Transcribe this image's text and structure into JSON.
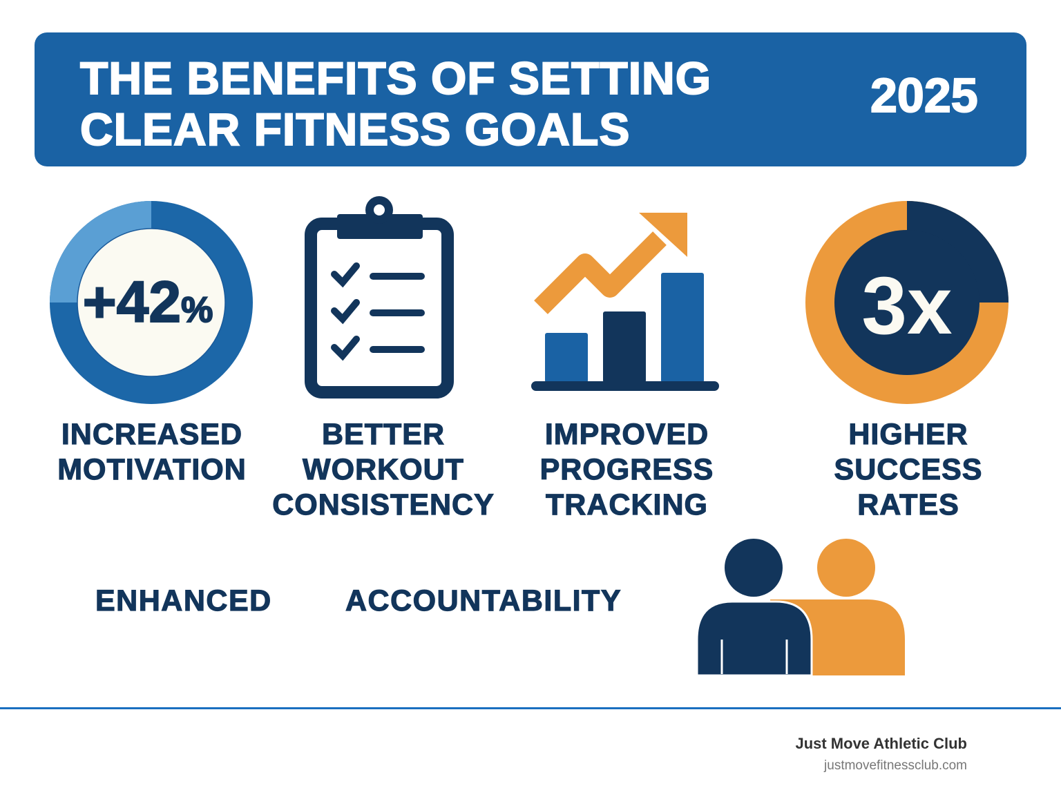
{
  "header": {
    "title_line1": "THE BENEFITS OF SETTING",
    "title_line2": "CLEAR FITNESS GOALS",
    "year": "2025"
  },
  "benefits": [
    {
      "icon": "donut-percent-icon",
      "stat": "+42",
      "stat_suffix": "%",
      "label_lines": [
        "INCREASED",
        "MOTIVATION"
      ]
    },
    {
      "icon": "clipboard-checklist-icon",
      "label_lines": [
        "BETTER",
        "WORKOUT",
        "CONSISTENCY"
      ]
    },
    {
      "icon": "growth-chart-icon",
      "label_lines": [
        "IMPROVED",
        "PROGRESS",
        "TRACKING"
      ]
    },
    {
      "icon": "donut-multiplier-icon",
      "stat": "3x",
      "label_lines": [
        "HIGHER",
        "SUCCESS",
        "RATES"
      ]
    }
  ],
  "accountability": {
    "word1": "ENHANCED",
    "word2": "ACCOUNTABILITY",
    "icon": "two-people-icon"
  },
  "footer": {
    "club_name": "Just Move Athletic Club",
    "url": "justmovefitnessclub.com"
  },
  "colors": {
    "primary_blue": "#1A62A4",
    "light_blue": "#5A9FD4",
    "navy": "#12355B",
    "orange": "#EC9A3C",
    "cream": "#FBFAF2"
  }
}
